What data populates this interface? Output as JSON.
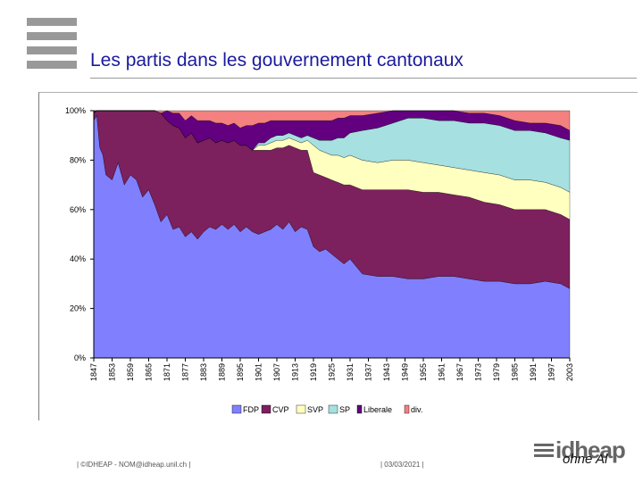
{
  "title": "Les partis dans les gouvernement cantonaux",
  "footer": {
    "left": "| ©IDHEAP - NOM@idheap.unil.ch |",
    "center": "| 03/03/2021 |",
    "logo_word": "idheap",
    "logo_sub": "ohne Al"
  },
  "colors": {
    "FDP": "#8080ff",
    "CVP": "#7c205e",
    "SVP": "#ffffc0",
    "SP": "#a6e0e0",
    "Liberale": "#620080",
    "div": "#f48080"
  },
  "chart_data": {
    "type": "area",
    "stacked": true,
    "normalized": true,
    "x": [
      1847,
      1848,
      1849,
      1850,
      1851,
      1853,
      1855,
      1857,
      1859,
      1861,
      1863,
      1865,
      1867,
      1869,
      1871,
      1873,
      1875,
      1877,
      1879,
      1881,
      1883,
      1885,
      1887,
      1889,
      1891,
      1893,
      1895,
      1897,
      1899,
      1901,
      1903,
      1905,
      1907,
      1909,
      1911,
      1913,
      1915,
      1917,
      1919,
      1921,
      1923,
      1925,
      1927,
      1929,
      1931,
      1935,
      1940,
      1945,
      1950,
      1955,
      1960,
      1965,
      1970,
      1975,
      1980,
      1985,
      1990,
      1995,
      2000,
      2003
    ],
    "x_ticks": [
      "1847",
      "1853",
      "1859",
      "1865",
      "1871",
      "1877",
      "1883",
      "1889",
      "1895",
      "1901",
      "1907",
      "1913",
      "1919",
      "1925",
      "1931",
      "1937",
      "1943",
      "1949",
      "1955",
      "1961",
      "1967",
      "1973",
      "1979",
      "1985",
      "1991",
      "1997",
      "2003"
    ],
    "y_ticks": [
      "0%",
      "20%",
      "40%",
      "60%",
      "80%",
      "100%"
    ],
    "ylim": [
      0,
      100
    ],
    "series": [
      {
        "name": "FDP",
        "values": [
          96,
          98,
          85,
          82,
          74,
          72,
          79,
          70,
          74,
          72,
          65,
          68,
          62,
          55,
          58,
          52,
          53,
          49,
          51,
          48,
          51,
          53,
          52,
          54,
          52,
          54,
          51,
          53,
          51,
          50,
          51,
          52,
          54,
          52,
          55,
          51,
          53,
          52,
          45,
          43,
          44,
          42,
          40,
          38,
          40,
          34,
          33,
          33,
          32,
          32,
          33,
          33,
          32,
          31,
          31,
          30,
          30,
          31,
          30,
          28
        ]
      },
      {
        "name": "CVP",
        "values": [
          3,
          2,
          15,
          18,
          26,
          28,
          21,
          30,
          26,
          28,
          35,
          32,
          38,
          44,
          38,
          42,
          40,
          40,
          40,
          39,
          37,
          36,
          35,
          34,
          35,
          34,
          35,
          33,
          33,
          34,
          33,
          32,
          31,
          33,
          31,
          34,
          31,
          32,
          30,
          31,
          29,
          30,
          31,
          32,
          30,
          34,
          35,
          35,
          36,
          35,
          34,
          33,
          33,
          32,
          31,
          30,
          30,
          29,
          28,
          28
        ]
      },
      {
        "name": "SVP",
        "values": [
          0,
          0,
          0,
          0,
          0,
          0,
          0,
          0,
          0,
          0,
          0,
          0,
          0,
          0,
          0,
          0,
          0,
          0,
          0,
          0,
          0,
          0,
          0,
          0,
          0,
          0,
          0,
          0,
          0,
          2,
          2,
          3,
          3,
          3,
          3,
          3,
          3,
          4,
          11,
          10,
          10,
          10,
          11,
          11,
          12,
          12,
          11,
          12,
          12,
          12,
          11,
          11,
          11,
          12,
          12,
          12,
          12,
          11,
          11,
          11
        ]
      },
      {
        "name": "SP",
        "values": [
          0,
          0,
          0,
          0,
          0,
          0,
          0,
          0,
          0,
          0,
          0,
          0,
          0,
          0,
          0,
          0,
          0,
          0,
          0,
          0,
          0,
          0,
          0,
          0,
          0,
          0,
          0,
          0,
          0,
          1,
          1,
          2,
          2,
          2,
          2,
          2,
          2,
          2,
          3,
          4,
          5,
          6,
          7,
          8,
          9,
          12,
          14,
          15,
          17,
          18,
          18,
          19,
          19,
          20,
          20,
          20,
          20,
          20,
          20,
          21
        ]
      },
      {
        "name": "Liberale",
        "values": [
          1,
          0,
          0,
          0,
          0,
          0,
          0,
          0,
          0,
          0,
          0,
          0,
          0,
          0,
          4,
          5,
          6,
          7,
          7,
          9,
          8,
          7,
          8,
          7,
          7,
          7,
          7,
          8,
          10,
          8,
          8,
          7,
          6,
          6,
          5,
          6,
          7,
          6,
          7,
          8,
          8,
          8,
          8,
          8,
          7,
          6,
          6,
          5,
          3,
          3,
          4,
          4,
          4,
          4,
          4,
          4,
          3,
          4,
          5,
          4
        ]
      },
      {
        "name": "div.",
        "values": [
          0,
          0,
          0,
          0,
          0,
          0,
          0,
          0,
          0,
          0,
          0,
          0,
          0,
          1,
          0,
          1,
          1,
          4,
          2,
          4,
          4,
          4,
          5,
          5,
          6,
          5,
          7,
          6,
          6,
          5,
          5,
          4,
          4,
          4,
          4,
          4,
          4,
          4,
          4,
          4,
          4,
          4,
          3,
          3,
          2,
          2,
          1,
          0,
          0,
          0,
          0,
          0,
          1,
          1,
          2,
          4,
          5,
          5,
          6,
          8
        ]
      }
    ],
    "legend": [
      "FDP",
      "CVP",
      "SVP",
      "SP",
      "Liberale",
      "div."
    ],
    "legend_position": "bottom"
  }
}
